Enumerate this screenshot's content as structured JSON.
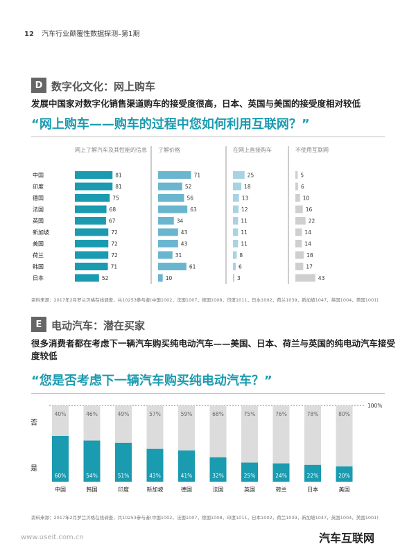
{
  "page": {
    "number": "12",
    "header": "汽车行业颠覆性数据探测–第1期",
    "watermark": "www.useit.com.cn",
    "brand": "汽车互联网"
  },
  "section_d": {
    "badge": "D",
    "title": "数字化文化：网上购车",
    "description": "发展中国家对数字化销售渠道购车的接受度很高，日本、英国与美国的接受度相对较低",
    "question": "“网上购车——购车的过程中您如何利用互联网？”",
    "source": "资料来源：2017年2月罗兰贝格在线调查，共10253参与者(中国1002，法国1007，德国1008，印度1011，日本1002，荷兰1039，新加坡1047，英国1004，美国1001)"
  },
  "section_e": {
    "badge": "E",
    "title": "电动汽车：潜在买家",
    "description": "很多消费者都在考虑下一辆汽车购买纯电动汽车——美国、日本、荷兰与英国的纯电动汽车接受度较低",
    "question": "“您是否考虑下一辆汽车购买纯电动汽车？”",
    "source": "资料来源：2017年2月罗兰贝格在线调查，共10253参与者(中国1002，法国1007，德国1008，印度1011，日本1002，荷兰1039，新加坡1047，英国1004，美国1001)"
  },
  "chart_data": [
    {
      "type": "bar",
      "orientation": "horizontal",
      "categories": [
        "中国",
        "印度",
        "德国",
        "法国",
        "英国",
        "新加坡",
        "美国",
        "荷兰",
        "韩国",
        "日本"
      ],
      "series": [
        {
          "name": "网上了解汽车及其性能的信息",
          "color": "#1a9bb0",
          "values": [
            81,
            81,
            75,
            68,
            67,
            72,
            72,
            72,
            71,
            52
          ]
        },
        {
          "name": "了解价格",
          "color": "#6bb6cf",
          "values": [
            71,
            52,
            56,
            63,
            34,
            43,
            43,
            31,
            61,
            10
          ]
        },
        {
          "name": "在网上直接购车",
          "color": "#a9d3e0",
          "values": [
            25,
            18,
            13,
            12,
            11,
            11,
            11,
            8,
            6,
            3
          ]
        },
        {
          "name": "不使用互联网",
          "color": "#cfcfcf",
          "values": [
            5,
            6,
            10,
            16,
            22,
            14,
            14,
            18,
            17,
            43
          ]
        }
      ]
    },
    {
      "type": "bar",
      "orientation": "vertical",
      "stacked": true,
      "categories": [
        "中国",
        "韩国",
        "印度",
        "新加坡",
        "德国",
        "法国",
        "英国",
        "荷兰",
        "日本",
        "美国"
      ],
      "total_label": "100%",
      "row_labels": {
        "top": "否",
        "bottom": "是"
      },
      "series": [
        {
          "name": "是",
          "color": "#1a9bb0",
          "values": [
            60,
            54,
            51,
            43,
            41,
            32,
            25,
            24,
            22,
            20
          ]
        },
        {
          "name": "否",
          "color": "#dcdcdc",
          "values": [
            40,
            46,
            49,
            57,
            59,
            68,
            75,
            76,
            78,
            80
          ]
        }
      ]
    }
  ]
}
